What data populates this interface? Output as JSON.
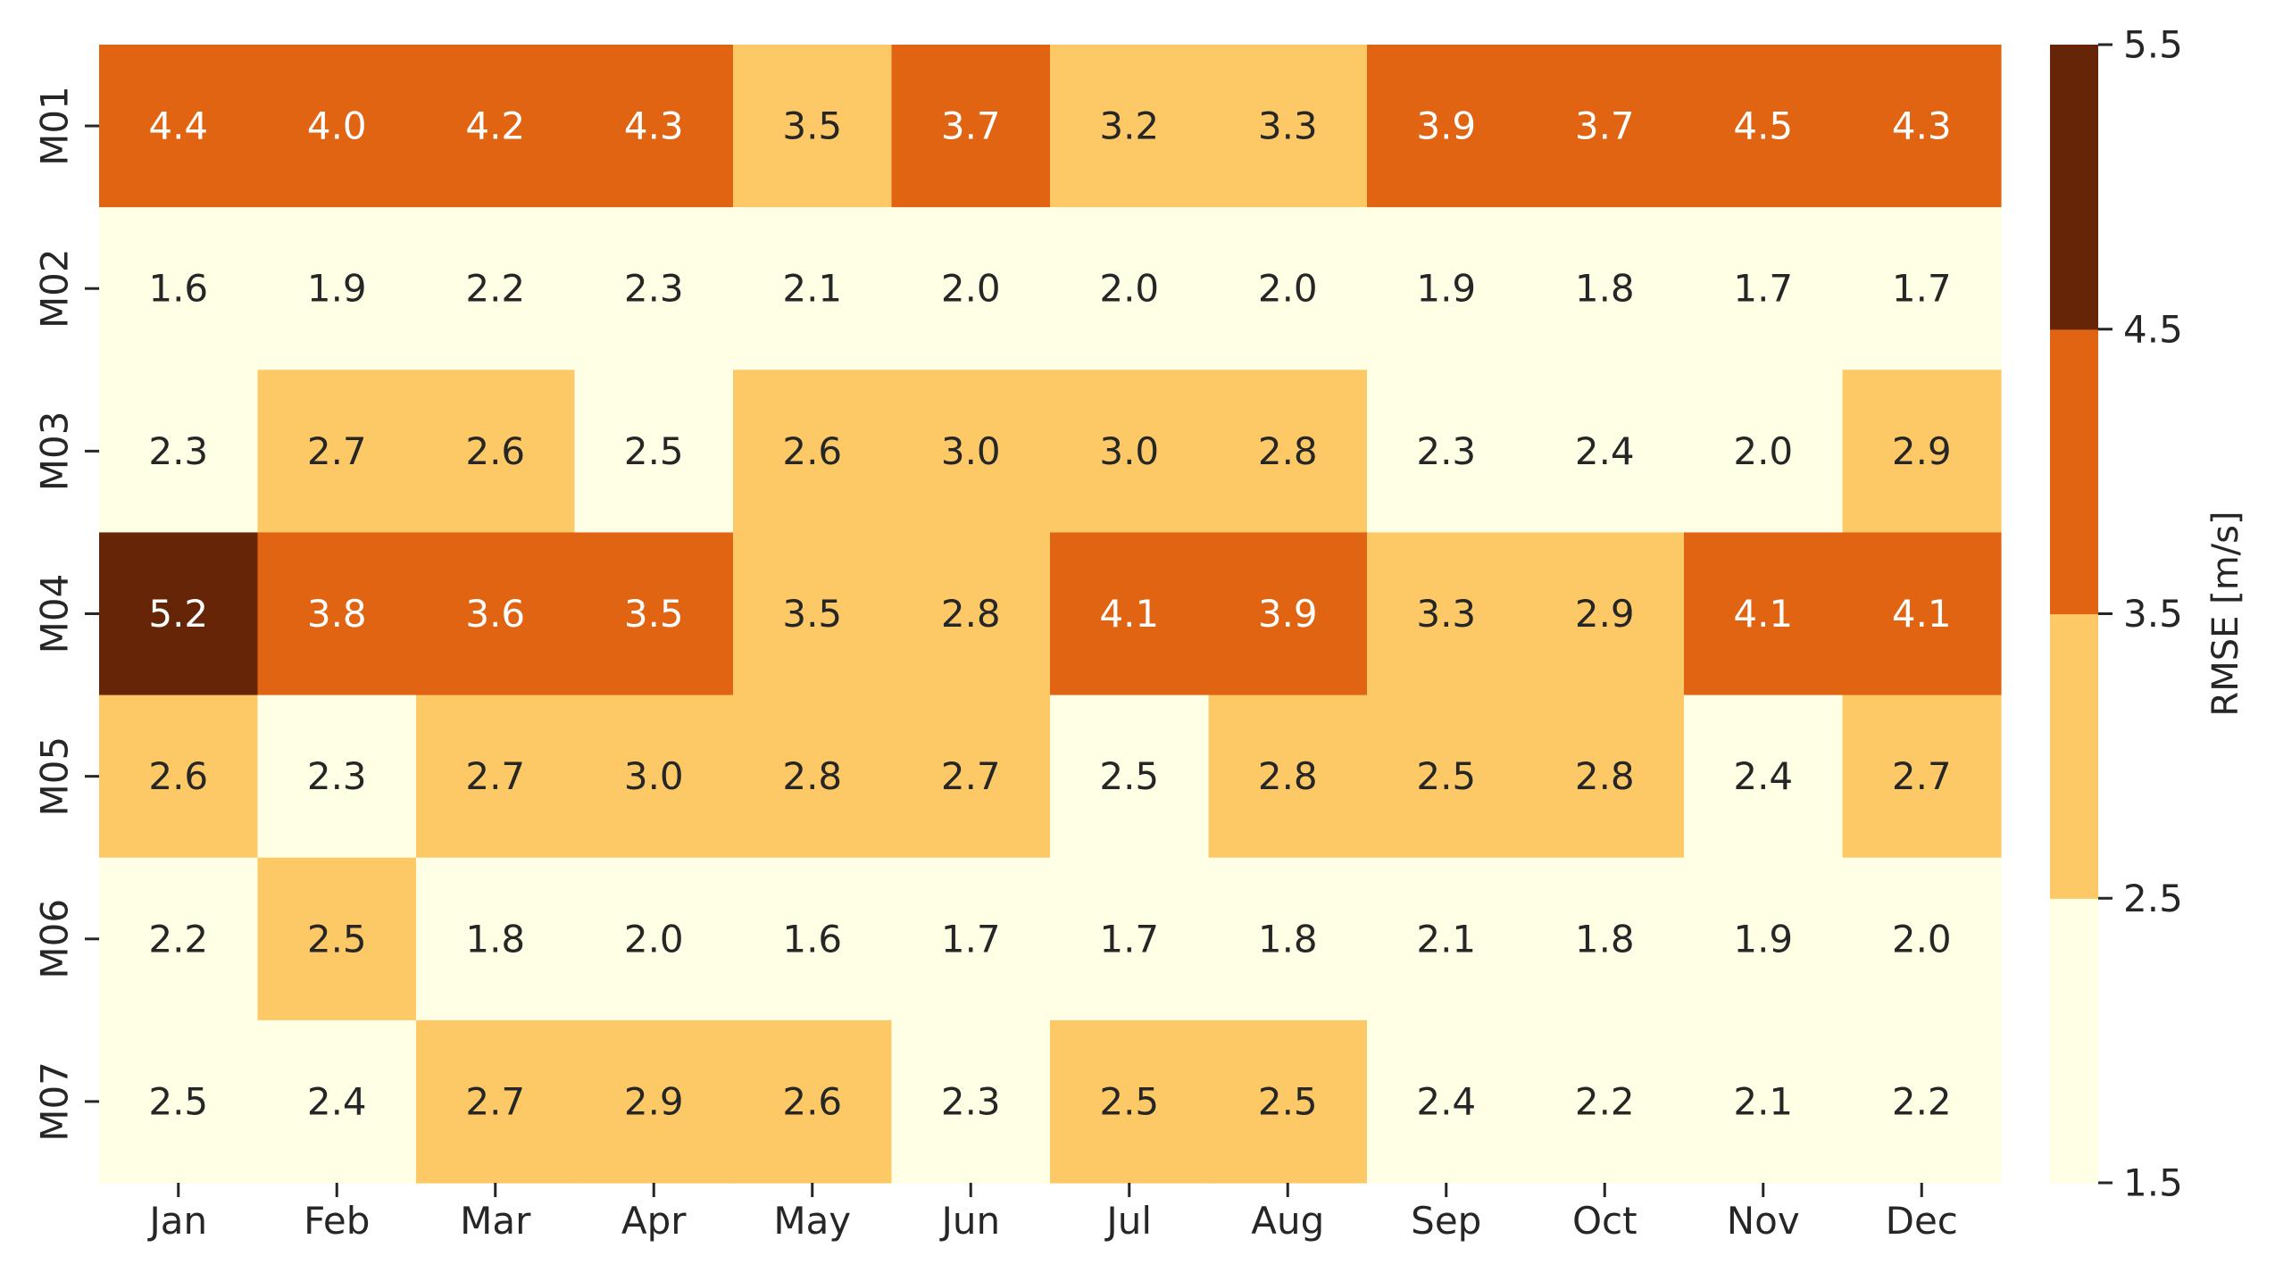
{
  "chart_data": {
    "type": "heatmap",
    "title": "",
    "xlabel": "",
    "ylabel": "",
    "x_categories": [
      "Jan",
      "Feb",
      "Mar",
      "Apr",
      "May",
      "Jun",
      "Jul",
      "Aug",
      "Sep",
      "Oct",
      "Nov",
      "Dec"
    ],
    "y_categories": [
      "M01",
      "M02",
      "M03",
      "M04",
      "M05",
      "M06",
      "M07"
    ],
    "values": [
      [
        4.4,
        4.0,
        4.2,
        4.3,
        3.5,
        3.7,
        3.2,
        3.3,
        3.9,
        3.7,
        4.5,
        4.3
      ],
      [
        1.6,
        1.9,
        2.2,
        2.3,
        2.1,
        2.0,
        2.0,
        2.0,
        1.9,
        1.8,
        1.7,
        1.7
      ],
      [
        2.3,
        2.7,
        2.6,
        2.5,
        2.6,
        3.0,
        3.0,
        2.8,
        2.3,
        2.4,
        2.0,
        2.9
      ],
      [
        5.2,
        3.8,
        3.6,
        3.5,
        3.5,
        2.8,
        4.1,
        3.9,
        3.3,
        2.9,
        4.1,
        4.1
      ],
      [
        2.6,
        2.3,
        2.7,
        3.0,
        2.8,
        2.7,
        2.5,
        2.8,
        2.5,
        2.8,
        2.4,
        2.7
      ],
      [
        2.2,
        2.5,
        1.8,
        2.0,
        1.6,
        1.7,
        1.7,
        1.8,
        2.1,
        1.8,
        1.9,
        2.0
      ],
      [
        2.5,
        2.4,
        2.7,
        2.9,
        2.6,
        2.3,
        2.5,
        2.5,
        2.4,
        2.2,
        2.1,
        2.2
      ]
    ],
    "cell_labels": [
      [
        "4.4",
        "4.0",
        "4.2",
        "4.3",
        "3.5",
        "3.7",
        "3.2",
        "3.3",
        "3.9",
        "3.7",
        "4.5",
        "4.3"
      ],
      [
        "1.6",
        "1.9",
        "2.2",
        "2.3",
        "2.1",
        "2.0",
        "2.0",
        "2.0",
        "1.9",
        "1.8",
        "1.7",
        "1.7"
      ],
      [
        "2.3",
        "2.7",
        "2.6",
        "2.5",
        "2.6",
        "3.0",
        "3.0",
        "2.8",
        "2.3",
        "2.4",
        "2.0",
        "2.9"
      ],
      [
        "5.2",
        "3.8",
        "3.6",
        "3.5",
        "3.5",
        "2.8",
        "4.1",
        "3.9",
        "3.3",
        "2.9",
        "4.1",
        "4.1"
      ],
      [
        "2.6",
        "2.3",
        "2.7",
        "3.0",
        "2.8",
        "2.7",
        "2.5",
        "2.8",
        "2.5",
        "2.8",
        "2.4",
        "2.7"
      ],
      [
        "2.2",
        "2.5",
        "1.8",
        "2.0",
        "1.6",
        "1.7",
        "1.7",
        "1.8",
        "2.1",
        "1.8",
        "1.9",
        "2.0"
      ],
      [
        "2.5",
        "2.4",
        "2.7",
        "2.9",
        "2.6",
        "2.3",
        "2.5",
        "2.5",
        "2.4",
        "2.2",
        "2.1",
        "2.2"
      ]
    ],
    "cell_classes": [
      [
        2,
        2,
        2,
        2,
        1,
        2,
        1,
        1,
        2,
        2,
        2,
        2
      ],
      [
        0,
        0,
        0,
        0,
        0,
        0,
        0,
        0,
        0,
        0,
        0,
        0
      ],
      [
        0,
        1,
        1,
        0,
        1,
        1,
        1,
        1,
        0,
        0,
        0,
        1
      ],
      [
        3,
        2,
        2,
        2,
        1,
        1,
        2,
        2,
        1,
        1,
        2,
        2
      ],
      [
        1,
        0,
        1,
        1,
        1,
        1,
        0,
        1,
        1,
        1,
        0,
        1
      ],
      [
        0,
        1,
        0,
        0,
        0,
        0,
        0,
        0,
        0,
        0,
        0,
        0
      ],
      [
        0,
        0,
        1,
        1,
        1,
        0,
        1,
        1,
        0,
        0,
        0,
        0
      ]
    ],
    "colorbar": {
      "label": "RMSE [m/s]",
      "boundaries": [
        1.5,
        2.5,
        3.5,
        4.5,
        5.5
      ],
      "tick_labels": [
        "1.5",
        "2.5",
        "3.5",
        "4.5",
        "5.5"
      ],
      "colors": [
        "#ffffe5",
        "#fdc966",
        "#e06412",
        "#662506"
      ],
      "text_colors": [
        "#262626",
        "#262626",
        "#ffffff",
        "#ffffff"
      ]
    },
    "grid": false
  }
}
